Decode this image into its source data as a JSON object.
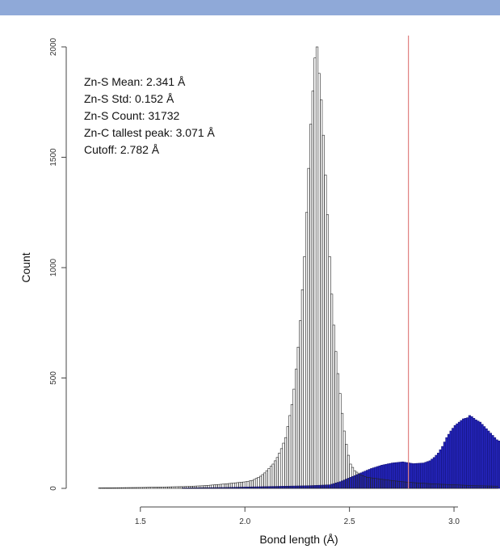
{
  "chart_data": {
    "type": "bar",
    "xlabel": "Bond length (Å)",
    "ylabel": "Count",
    "xlim": [
      1.3,
      3.22
    ],
    "ylim": [
      0,
      2000
    ],
    "x_ticks": [
      1.5,
      2.0,
      2.5,
      3.0
    ],
    "x_tick_labels": [
      "1.5",
      "2.0",
      "2.5",
      "3.0"
    ],
    "y_ticks": [
      0,
      500,
      1000,
      1500,
      2000
    ],
    "y_tick_labels": [
      "0",
      "500",
      "1000",
      "1500",
      "2000"
    ],
    "bin_width": 0.01,
    "annotations": [
      "Zn-S Mean: 2.341 Å",
      "Zn-S Std: 0.152 Å",
      "Zn-S Count: 31732",
      "Zn-C tallest peak:  3.071 Å",
      "Cutoff: 2.782 Å"
    ],
    "cutoff": 2.782,
    "colors": {
      "zn_s": "#ffffff",
      "zn_c": "#2323b8",
      "cutoff": "#e08080",
      "frame": "#8fa9d8"
    },
    "series": [
      {
        "id": "zn-s",
        "bins": [
          [
            1.3,
            2
          ],
          [
            1.4,
            3
          ],
          [
            1.5,
            4
          ],
          [
            1.6,
            6
          ],
          [
            1.7,
            8
          ],
          [
            1.8,
            12
          ],
          [
            1.85,
            16
          ],
          [
            1.9,
            20
          ],
          [
            1.95,
            25
          ],
          [
            2.0,
            30
          ],
          [
            2.03,
            36
          ],
          [
            2.05,
            45
          ],
          [
            2.07,
            55
          ],
          [
            2.09,
            70
          ],
          [
            2.11,
            90
          ],
          [
            2.13,
            110
          ],
          [
            2.15,
            140
          ],
          [
            2.17,
            180
          ],
          [
            2.19,
            230
          ],
          [
            2.2,
            280
          ],
          [
            2.21,
            330
          ],
          [
            2.22,
            380
          ],
          [
            2.23,
            450
          ],
          [
            2.24,
            540
          ],
          [
            2.25,
            640
          ],
          [
            2.26,
            760
          ],
          [
            2.27,
            900
          ],
          [
            2.28,
            1050
          ],
          [
            2.29,
            1250
          ],
          [
            2.3,
            1450
          ],
          [
            2.31,
            1650
          ],
          [
            2.32,
            1800
          ],
          [
            2.33,
            1950
          ],
          [
            2.34,
            2000
          ],
          [
            2.35,
            1880
          ],
          [
            2.36,
            1760
          ],
          [
            2.37,
            1600
          ],
          [
            2.38,
            1420
          ],
          [
            2.39,
            1240
          ],
          [
            2.4,
            1050
          ],
          [
            2.41,
            880
          ],
          [
            2.42,
            740
          ],
          [
            2.43,
            620
          ],
          [
            2.44,
            520
          ],
          [
            2.45,
            430
          ],
          [
            2.46,
            340
          ],
          [
            2.47,
            260
          ],
          [
            2.48,
            200
          ],
          [
            2.49,
            150
          ],
          [
            2.5,
            110
          ],
          [
            2.52,
            80
          ],
          [
            2.55,
            60
          ],
          [
            2.58,
            50
          ],
          [
            2.62,
            45
          ],
          [
            2.66,
            40
          ],
          [
            2.7,
            35
          ],
          [
            2.75,
            30
          ],
          [
            2.8,
            26
          ],
          [
            2.9,
            20
          ],
          [
            3.0,
            16
          ],
          [
            3.1,
            12
          ],
          [
            3.2,
            10
          ]
        ]
      },
      {
        "id": "zn-c",
        "bins": [
          [
            1.7,
            2
          ],
          [
            1.9,
            4
          ],
          [
            2.0,
            6
          ],
          [
            2.1,
            8
          ],
          [
            2.2,
            10
          ],
          [
            2.3,
            12
          ],
          [
            2.4,
            16
          ],
          [
            2.45,
            30
          ],
          [
            2.5,
            50
          ],
          [
            2.55,
            70
          ],
          [
            2.6,
            90
          ],
          [
            2.65,
            105
          ],
          [
            2.7,
            115
          ],
          [
            2.75,
            120
          ],
          [
            2.8,
            112
          ],
          [
            2.85,
            115
          ],
          [
            2.88,
            125
          ],
          [
            2.9,
            140
          ],
          [
            2.92,
            160
          ],
          [
            2.94,
            190
          ],
          [
            2.96,
            230
          ],
          [
            2.98,
            260
          ],
          [
            3.0,
            285
          ],
          [
            3.02,
            300
          ],
          [
            3.04,
            315
          ],
          [
            3.06,
            320
          ],
          [
            3.07,
            330
          ],
          [
            3.08,
            325
          ],
          [
            3.1,
            310
          ],
          [
            3.12,
            300
          ],
          [
            3.14,
            280
          ],
          [
            3.16,
            260
          ],
          [
            3.18,
            240
          ],
          [
            3.2,
            220
          ],
          [
            3.22,
            210
          ]
        ]
      }
    ]
  }
}
